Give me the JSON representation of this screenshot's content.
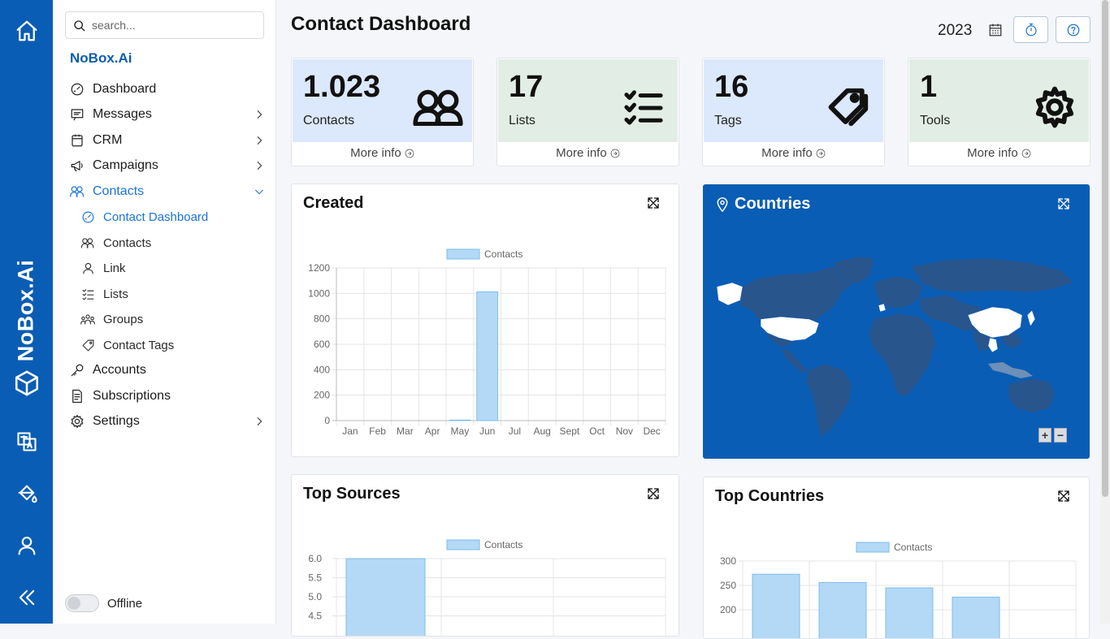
{
  "app": {
    "brand": "NoBox.Ai"
  },
  "search": {
    "placeholder": "search..."
  },
  "organization": "NoBox.Ai",
  "nav": [
    {
      "label": "Dashboard",
      "icon": "gauge-icon"
    },
    {
      "label": "Messages",
      "icon": "message-icon"
    },
    {
      "label": "CRM",
      "icon": "crm-icon"
    },
    {
      "label": "Campaigns",
      "icon": "megaphone-icon"
    },
    {
      "label": "Contacts",
      "icon": "users-icon",
      "expanded": true
    },
    {
      "label": "Accounts",
      "icon": "key-icon"
    },
    {
      "label": "Subscriptions",
      "icon": "document-icon"
    },
    {
      "label": "Settings",
      "icon": "gear-icon"
    }
  ],
  "contacts_sub": [
    {
      "label": "Contact Dashboard",
      "icon": "gauge-icon",
      "active": true
    },
    {
      "label": "Contacts",
      "icon": "users-icon"
    },
    {
      "label": "Link",
      "icon": "user-icon"
    },
    {
      "label": "Lists",
      "icon": "checklist-icon"
    },
    {
      "label": "Groups",
      "icon": "group-icon"
    },
    {
      "label": "Contact Tags",
      "icon": "tag-icon"
    }
  ],
  "status": {
    "label": "Offline"
  },
  "header": {
    "title": "Contact Dashboard",
    "year": "2023"
  },
  "stats": [
    {
      "value": "1.023",
      "label": "Contacts",
      "more": "More info",
      "color": "#dce8fc",
      "icon": "users-icon"
    },
    {
      "value": "17",
      "label": "Lists",
      "more": "More info",
      "color": "#e2eee5",
      "icon": "checklist-icon"
    },
    {
      "value": "16",
      "label": "Tags",
      "more": "More info",
      "color": "#dce8fc",
      "icon": "tags-icon"
    },
    {
      "value": "1",
      "label": "Tools",
      "more": "More info",
      "color": "#e2eee5",
      "icon": "gear-icon"
    }
  ],
  "cards": {
    "created": {
      "title": "Created"
    },
    "countries": {
      "title": "Countries"
    },
    "top_sources": {
      "title": "Top Sources"
    },
    "top_countries": {
      "title": "Top Countries"
    }
  },
  "map": {
    "zoom_in": "+",
    "zoom_out": "−"
  },
  "chart_data": [
    {
      "type": "bar",
      "title": "Created",
      "legend": [
        "Contacts"
      ],
      "categories": [
        "Jan",
        "Feb",
        "Mar",
        "Apr",
        "May",
        "Jun",
        "Jul",
        "Aug",
        "Sept",
        "Oct",
        "Nov",
        "Dec"
      ],
      "series": [
        {
          "name": "Contacts",
          "values": [
            0,
            0,
            0,
            0,
            4,
            1012,
            0,
            0,
            0,
            0,
            0,
            0
          ]
        }
      ],
      "ylim": [
        0,
        1200
      ],
      "yticks": [
        "1200",
        "1000",
        "800",
        "600",
        "400",
        "200",
        "0"
      ]
    },
    {
      "type": "bar",
      "title": "Top Sources",
      "legend": [
        "Contacts"
      ],
      "series": [
        {
          "name": "Contacts",
          "values": [
            6
          ]
        }
      ],
      "yticks": [
        "6.0",
        "5.5",
        "5.0",
        "4.5"
      ]
    },
    {
      "type": "bar",
      "title": "Top Countries",
      "legend": [
        "Contacts"
      ],
      "series": [
        {
          "name": "Contacts",
          "values": [
            273,
            256,
            245,
            226
          ]
        }
      ],
      "yticks": [
        "300",
        "250",
        "200"
      ]
    }
  ]
}
